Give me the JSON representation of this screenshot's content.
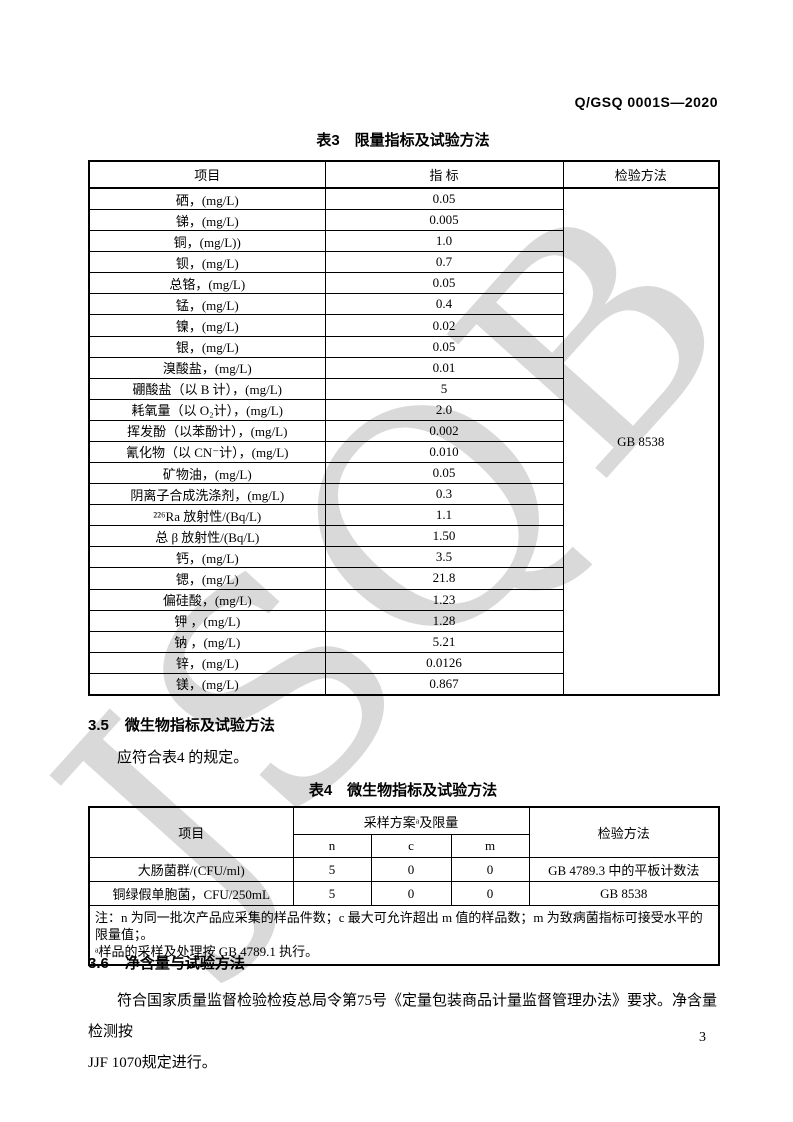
{
  "page": {
    "header_code": "Q/GSQ 0001S—2020",
    "watermark": "JSQB",
    "page_number": "3"
  },
  "table3": {
    "title": "表3　限量指标及试验方法",
    "columns": [
      "项目",
      "指 标",
      "检验方法"
    ],
    "method_all_rows": "GB 8538",
    "rows": [
      {
        "item": "硒，(mg/L)",
        "value": "0.05"
      },
      {
        "item": "锑，(mg/L)",
        "value": "0.005"
      },
      {
        "item": "铜，(mg/L))",
        "value": "1.0"
      },
      {
        "item": "钡，(mg/L)",
        "value": "0.7"
      },
      {
        "item": "总铬，(mg/L)",
        "value": "0.05"
      },
      {
        "item": "锰，(mg/L)",
        "value": "0.4"
      },
      {
        "item": "镍，(mg/L)",
        "value": "0.02"
      },
      {
        "item": "银，(mg/L)",
        "value": "0.05"
      },
      {
        "item": "溴酸盐，(mg/L)",
        "value": "0.01"
      },
      {
        "item": "硼酸盐（以 B 计），(mg/L)",
        "value": "5"
      },
      {
        "item": "耗氧量（以 O₂计），(mg/L)",
        "value": "2.0"
      },
      {
        "item": "挥发酚（以苯酚计），(mg/L)",
        "value": "0.002"
      },
      {
        "item": "氰化物（以 CN⁻计），(mg/L)",
        "value": "0.010"
      },
      {
        "item": "矿物油，(mg/L)",
        "value": "0.05"
      },
      {
        "item": "阴离子合成洗涤剂，(mg/L)",
        "value": "0.3"
      },
      {
        "item": "²²⁶Ra 放射性/(Bq/L)",
        "value": "1.1"
      },
      {
        "item": "总 β 放射性/(Bq/L)",
        "value": "1.50"
      },
      {
        "item": "钙，(mg/L)",
        "value": "3.5"
      },
      {
        "item": "锶，(mg/L)",
        "value": "21.8"
      },
      {
        "item": "偏硅酸，(mg/L)",
        "value": "1.23"
      },
      {
        "item": "钾 ，(mg/L)",
        "value": "1.28"
      },
      {
        "item": "钠 ，(mg/L)",
        "value": "5.21"
      },
      {
        "item": "锌，(mg/L)",
        "value": "0.0126"
      },
      {
        "item": "镁，(mg/L)",
        "value": "0.867"
      }
    ]
  },
  "section35": {
    "number": "3.5",
    "title": "微生物指标及试验方法",
    "body": "应符合表4 的规定。"
  },
  "table4": {
    "title": "表4　微生物指标及试验方法",
    "col_item": "项目",
    "col_sampling": "采样方案ᵃ及限量",
    "col_method": "检验方法",
    "subcols": [
      "n",
      "c",
      "m"
    ],
    "rows": [
      {
        "item": "大肠菌群/(CFU/ml)",
        "n": "5",
        "c": "0",
        "m": "0",
        "method": "GB 4789.3 中的平板计数法"
      },
      {
        "item": "铜绿假单胞菌，CFU/250mL",
        "n": "5",
        "c": "0",
        "m": "0",
        "method": "GB 8538"
      }
    ],
    "note_line1": "注：n 为同一批次产品应采集的样品件数；c 最大可允许超出 m 值的样品数；m 为致病菌指标可接受水平的限量值；。",
    "note_line2": "ᵃ样品的采样及处理按 GB 4789.1 执行。"
  },
  "section36": {
    "number": "3.6",
    "title": "净含量与试验方法",
    "body_line1": "符合国家质量监督检验检疫总局令第75号《定量包装商品计量监督管理办法》要求。净含量检测按",
    "body_line2": "JJF 1070规定进行。"
  }
}
